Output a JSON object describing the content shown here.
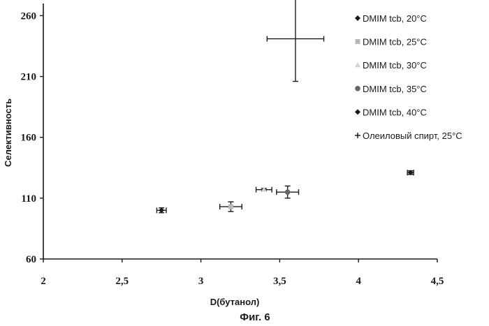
{
  "chart_data": {
    "type": "scatter",
    "title": "",
    "xlabel": "D(бутанол)",
    "ylabel": "Селективность",
    "caption": "Фиг. 6",
    "xlim": [
      2,
      4.5
    ],
    "ylim": [
      60,
      270
    ],
    "x_ticks": [
      {
        "value": 2,
        "label": "2"
      },
      {
        "value": 2.5,
        "label": "2,5"
      },
      {
        "value": 3,
        "label": "3"
      },
      {
        "value": 3.5,
        "label": "3,5"
      },
      {
        "value": 4,
        "label": "4"
      },
      {
        "value": 4.5,
        "label": "4,5"
      }
    ],
    "y_ticks": [
      {
        "value": 60,
        "label": "60"
      },
      {
        "value": 110,
        "label": "110"
      },
      {
        "value": 160,
        "label": "160"
      },
      {
        "value": 210,
        "label": "210"
      },
      {
        "value": 260,
        "label": "260"
      }
    ],
    "grid": false,
    "legend_position": "right",
    "series": [
      {
        "name": "DMIM tcb, 20°C",
        "marker": "diamond",
        "color": "#1a1a1a",
        "points": [
          {
            "x": 4.33,
            "y": 131,
            "xerr": 0.02,
            "yerr": 1.5
          }
        ]
      },
      {
        "name": "DMIM tcb, 25°C",
        "marker": "square",
        "color": "#b8b8b8",
        "points": [
          {
            "x": 3.19,
            "y": 103,
            "xerr": 0.07,
            "yerr": 4
          }
        ]
      },
      {
        "name": "DMIM tcb, 30°C",
        "marker": "triangle",
        "color": "#d0d0d0",
        "points": [
          {
            "x": 3.4,
            "y": 117,
            "xerr": 0.05,
            "yerr": 1
          }
        ]
      },
      {
        "name": "DMIM tcb, 35°C",
        "marker": "circle",
        "color": "#666666",
        "points": [
          {
            "x": 3.55,
            "y": 115,
            "xerr": 0.07,
            "yerr": 5
          }
        ]
      },
      {
        "name": "DMIM tcb, 40°C",
        "marker": "diamond",
        "color": "#1a1a1a",
        "points": [
          {
            "x": 2.75,
            "y": 100,
            "xerr": 0.03,
            "yerr": 2
          }
        ]
      },
      {
        "name": "Олеиловый спирт, 25°C",
        "marker": "plus",
        "color": "#1a1a1a",
        "points": [
          {
            "x": 3.6,
            "y": 241,
            "xerr": 0.18,
            "yerr": 35
          }
        ]
      }
    ]
  }
}
